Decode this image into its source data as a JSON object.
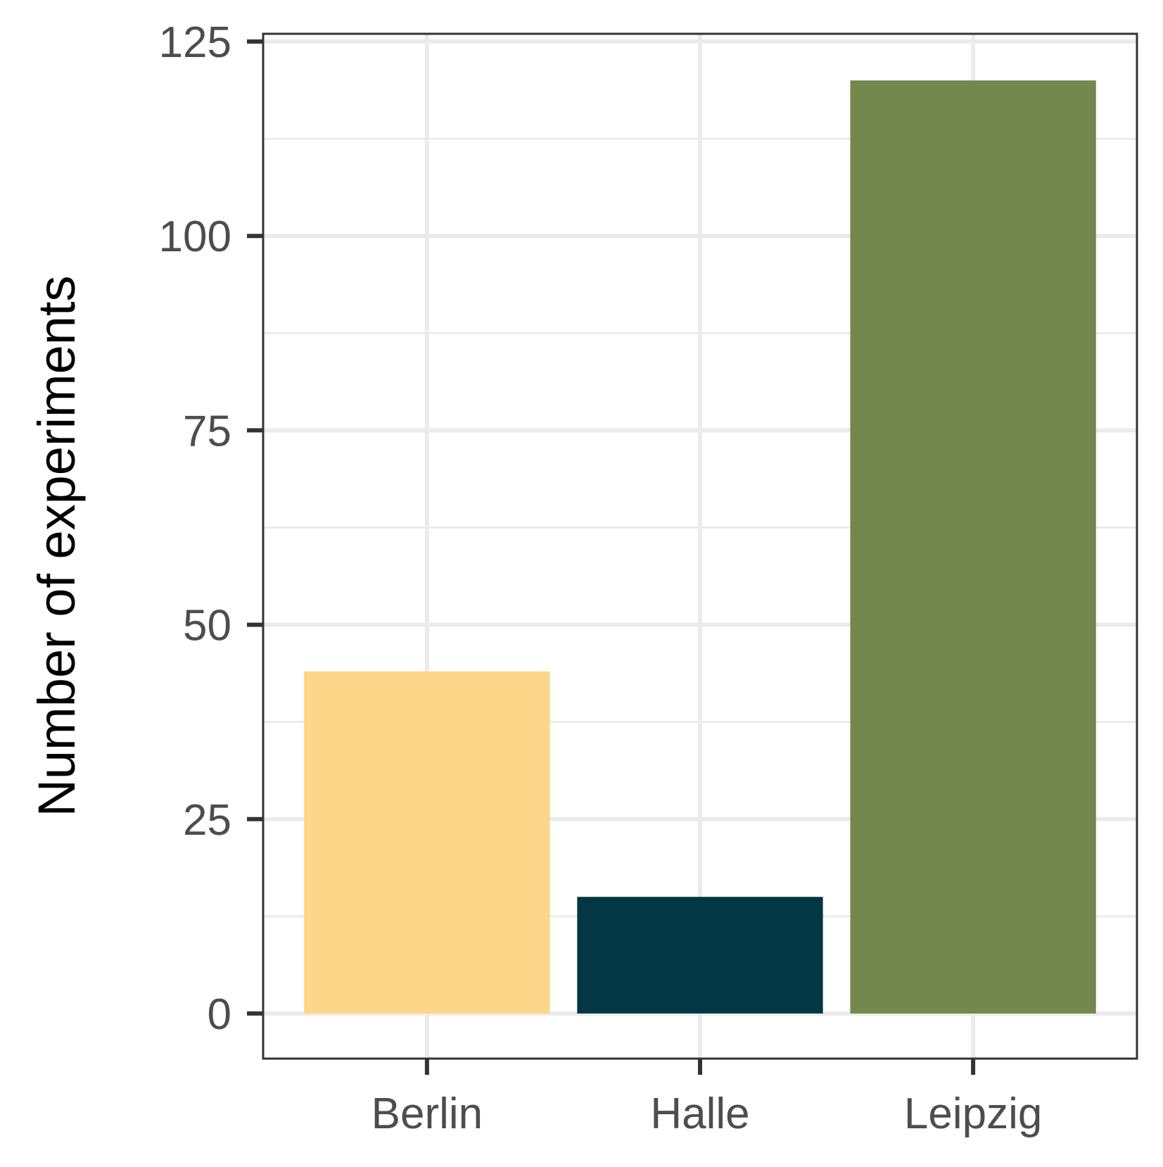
{
  "chart_data": {
    "type": "bar",
    "categories": [
      "Berlin",
      "Halle",
      "Leipzig"
    ],
    "values": [
      44,
      15,
      120
    ],
    "colors": [
      "#fdd68a",
      "#043744",
      "#73884c"
    ],
    "title": "",
    "xlabel": "",
    "ylabel": "Number of experiments",
    "ylim": [
      -5.8,
      126
    ],
    "yticks": [
      0,
      25,
      50,
      75,
      100,
      125
    ],
    "ytick_labels": [
      "0",
      "25",
      "50",
      "75",
      "100",
      "125"
    ],
    "y_minor_ticks": [
      12.5,
      37.5,
      62.5,
      87.5,
      112.5
    ],
    "grid": true,
    "legend": "none",
    "panel_border_color": "#333333",
    "gridline_color": "#ebebeb",
    "tick_color": "#333333"
  }
}
